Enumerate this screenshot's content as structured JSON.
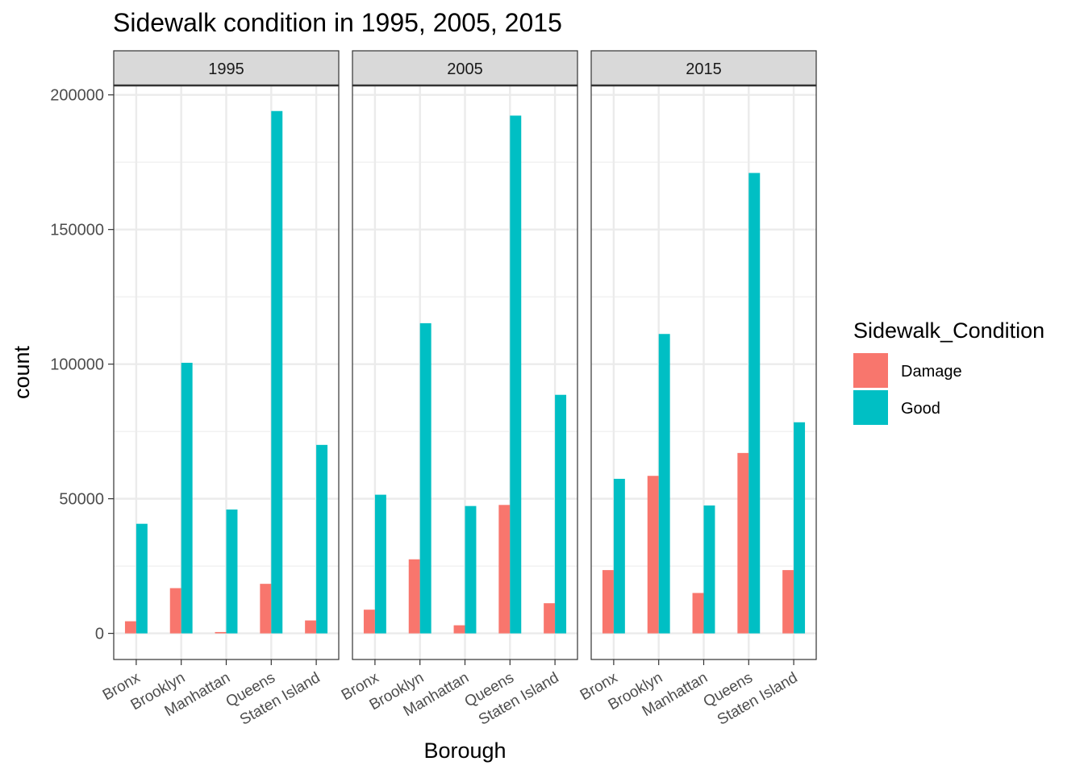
{
  "chart_data": {
    "type": "bar",
    "title": "Sidewalk condition in 1995, 2005, 2015",
    "xlabel": "Borough",
    "ylabel": "count",
    "ylim": [
      -9700,
      203500
    ],
    "y_ticks": [
      0,
      50000,
      100000,
      150000,
      200000
    ],
    "y_tick_labels": [
      "0",
      "50000",
      "100000",
      "150000",
      "200000"
    ],
    "grid": true,
    "legend": {
      "title": "Sidewalk_Condition",
      "position": "right"
    },
    "categories": [
      "Bronx",
      "Brooklyn",
      "Manhattan",
      "Queens",
      "Staten Island"
    ],
    "facets": [
      {
        "label": "1995",
        "series": [
          {
            "name": "Damage",
            "values": [
              4500,
              16800,
              500,
              18400,
              4800
            ]
          },
          {
            "name": "Good",
            "values": [
              40700,
              100500,
              46000,
              194000,
              70000
            ]
          }
        ]
      },
      {
        "label": "2005",
        "series": [
          {
            "name": "Damage",
            "values": [
              8800,
              27500,
              3000,
              47700,
              11200
            ]
          },
          {
            "name": "Good",
            "values": [
              51500,
              115200,
              47300,
              192300,
              88600
            ]
          }
        ]
      },
      {
        "label": "2015",
        "series": [
          {
            "name": "Damage",
            "values": [
              23500,
              58500,
              15000,
              67000,
              23500
            ]
          },
          {
            "name": "Good",
            "values": [
              57400,
              111200,
              47500,
              171000,
              78400
            ]
          }
        ]
      }
    ],
    "colors": {
      "Damage": "#F8766D",
      "Good": "#00BFC4"
    }
  }
}
